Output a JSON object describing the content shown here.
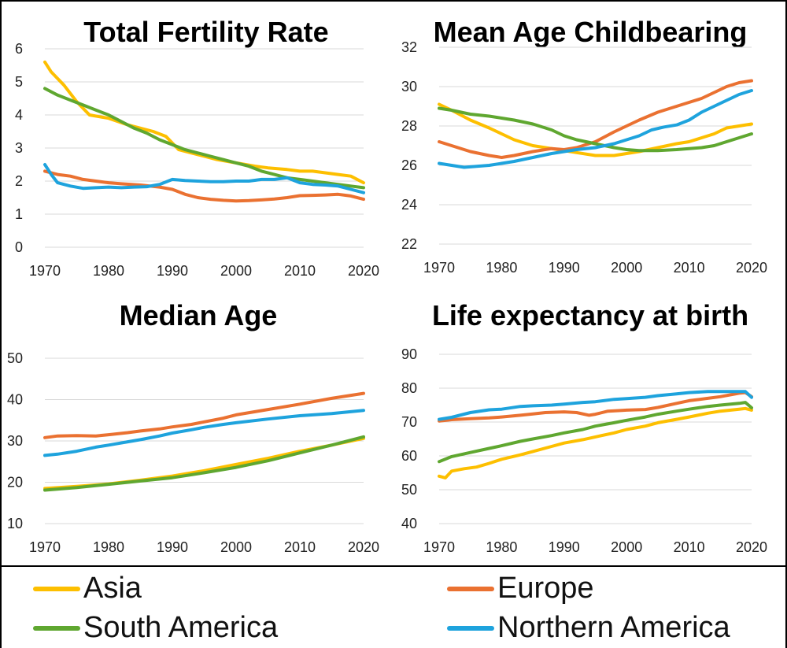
{
  "legend": [
    {
      "name": "Asia",
      "color": "#FDBF00"
    },
    {
      "name": "Europe",
      "color": "#EA7131"
    },
    {
      "name": "South America",
      "color": "#5FA730"
    },
    {
      "name": "Northern America",
      "color": "#1EA3DD"
    }
  ],
  "chart_data": [
    {
      "type": "line",
      "title": "Total Fertility Rate",
      "xlabel": "",
      "ylabel": "",
      "xlim": [
        1970,
        2020
      ],
      "ylim": [
        0,
        6
      ],
      "xticks": [
        1970,
        1980,
        1990,
        2000,
        2010,
        2020
      ],
      "yticks": [
        0,
        1,
        2,
        3,
        4,
        5,
        6
      ],
      "grid": true,
      "series": [
        {
          "name": "Asia",
          "x": [
            1970,
            1971,
            1973,
            1975,
            1977,
            1980,
            1983,
            1985,
            1987,
            1989,
            1991,
            1993,
            1995,
            1997,
            2000,
            2003,
            2005,
            2008,
            2010,
            2012,
            2014,
            2016,
            2018,
            2020
          ],
          "values": [
            5.6,
            5.3,
            4.9,
            4.4,
            4.0,
            3.9,
            3.7,
            3.6,
            3.5,
            3.35,
            2.95,
            2.85,
            2.75,
            2.65,
            2.55,
            2.45,
            2.4,
            2.35,
            2.3,
            2.3,
            2.25,
            2.2,
            2.15,
            1.95
          ]
        },
        {
          "name": "Europe",
          "x": [
            1970,
            1972,
            1974,
            1976,
            1978,
            1980,
            1982,
            1985,
            1988,
            1990,
            1992,
            1994,
            1996,
            1998,
            2000,
            2002,
            2004,
            2006,
            2008,
            2010,
            2012,
            2014,
            2016,
            2018,
            2020
          ],
          "values": [
            2.3,
            2.2,
            2.15,
            2.05,
            2.0,
            1.95,
            1.92,
            1.88,
            1.82,
            1.75,
            1.6,
            1.5,
            1.45,
            1.42,
            1.4,
            1.41,
            1.43,
            1.46,
            1.5,
            1.56,
            1.57,
            1.58,
            1.6,
            1.55,
            1.45
          ]
        },
        {
          "name": "South America",
          "x": [
            1970,
            1972,
            1974,
            1976,
            1978,
            1980,
            1982,
            1984,
            1986,
            1988,
            1990,
            1992,
            1994,
            1996,
            1998,
            2000,
            2002,
            2004,
            2006,
            2008,
            2010,
            2012,
            2014,
            2016,
            2018,
            2020
          ],
          "values": [
            4.8,
            4.6,
            4.45,
            4.3,
            4.15,
            4.0,
            3.8,
            3.6,
            3.45,
            3.25,
            3.1,
            2.95,
            2.85,
            2.75,
            2.65,
            2.55,
            2.45,
            2.3,
            2.2,
            2.1,
            2.05,
            2.0,
            1.95,
            1.9,
            1.85,
            1.8
          ]
        },
        {
          "name": "Northern America",
          "x": [
            1970,
            1971,
            1972,
            1974,
            1976,
            1978,
            1980,
            1982,
            1984,
            1986,
            1988,
            1990,
            1992,
            1994,
            1996,
            1998,
            2000,
            2002,
            2004,
            2006,
            2008,
            2010,
            2012,
            2014,
            2016,
            2018,
            2020
          ],
          "values": [
            2.5,
            2.2,
            1.95,
            1.85,
            1.78,
            1.8,
            1.82,
            1.8,
            1.82,
            1.83,
            1.9,
            2.05,
            2.02,
            2.0,
            1.98,
            1.98,
            2.0,
            2.0,
            2.05,
            2.05,
            2.1,
            1.95,
            1.9,
            1.88,
            1.85,
            1.75,
            1.65
          ]
        }
      ]
    },
    {
      "type": "line",
      "title": "Mean Age Childbearing",
      "xlabel": "",
      "ylabel": "",
      "xlim": [
        1970,
        2020
      ],
      "ylim": [
        22,
        32
      ],
      "xticks": [
        1970,
        1980,
        1990,
        2000,
        2010,
        2020
      ],
      "yticks": [
        22,
        24,
        26,
        28,
        30,
        32
      ],
      "grid": true,
      "series": [
        {
          "name": "Asia",
          "x": [
            1970,
            1972,
            1975,
            1978,
            1980,
            1982,
            1985,
            1988,
            1990,
            1992,
            1995,
            1998,
            2000,
            2002,
            2005,
            2008,
            2010,
            2012,
            2014,
            2016,
            2018,
            2020
          ],
          "values": [
            29.1,
            28.8,
            28.3,
            27.9,
            27.6,
            27.3,
            27.0,
            26.85,
            26.75,
            26.65,
            26.5,
            26.5,
            26.6,
            26.7,
            26.9,
            27.1,
            27.2,
            27.4,
            27.6,
            27.9,
            28.0,
            28.1
          ]
        },
        {
          "name": "Europe",
          "x": [
            1970,
            1972,
            1975,
            1978,
            1980,
            1982,
            1985,
            1988,
            1990,
            1992,
            1995,
            1998,
            2000,
            2002,
            2005,
            2008,
            2010,
            2012,
            2014,
            2016,
            2018,
            2020
          ],
          "values": [
            27.2,
            27.0,
            26.7,
            26.5,
            26.4,
            26.5,
            26.7,
            26.85,
            26.8,
            26.9,
            27.2,
            27.7,
            28.0,
            28.3,
            28.7,
            29.0,
            29.2,
            29.4,
            29.7,
            30.0,
            30.2,
            30.3
          ]
        },
        {
          "name": "South America",
          "x": [
            1970,
            1972,
            1975,
            1978,
            1980,
            1982,
            1985,
            1988,
            1990,
            1992,
            1995,
            1998,
            2000,
            2002,
            2005,
            2008,
            2010,
            2012,
            2014,
            2016,
            2018,
            2020
          ],
          "values": [
            28.9,
            28.8,
            28.6,
            28.5,
            28.4,
            28.3,
            28.1,
            27.8,
            27.5,
            27.3,
            27.1,
            26.9,
            26.8,
            26.75,
            26.75,
            26.8,
            26.85,
            26.9,
            27.0,
            27.2,
            27.4,
            27.6
          ]
        },
        {
          "name": "Northern America",
          "x": [
            1970,
            1972,
            1974,
            1976,
            1978,
            1980,
            1982,
            1985,
            1988,
            1990,
            1992,
            1995,
            1998,
            2000,
            2002,
            2004,
            2006,
            2008,
            2010,
            2012,
            2014,
            2016,
            2018,
            2020
          ],
          "values": [
            26.1,
            26.0,
            25.9,
            25.95,
            26.0,
            26.1,
            26.2,
            26.4,
            26.6,
            26.7,
            26.8,
            26.9,
            27.1,
            27.3,
            27.5,
            27.8,
            27.95,
            28.05,
            28.3,
            28.7,
            29.0,
            29.3,
            29.6,
            29.8
          ]
        }
      ]
    },
    {
      "type": "line",
      "title": "Median Age",
      "xlabel": "",
      "ylabel": "",
      "xlim": [
        1970,
        2020
      ],
      "ylim": [
        10,
        50
      ],
      "xticks": [
        1970,
        1980,
        1990,
        2000,
        2010,
        2020
      ],
      "yticks": [
        10,
        20,
        30,
        40,
        50
      ],
      "grid": true,
      "series": [
        {
          "name": "Asia",
          "x": [
            1970,
            1975,
            1980,
            1985,
            1990,
            1995,
            2000,
            2005,
            2010,
            2015,
            2020
          ],
          "values": [
            18.5,
            19.0,
            19.6,
            20.5,
            21.5,
            22.8,
            24.3,
            25.8,
            27.5,
            29.0,
            30.6
          ]
        },
        {
          "name": "Europe",
          "x": [
            1970,
            1972,
            1975,
            1978,
            1980,
            1983,
            1985,
            1988,
            1990,
            1993,
            1995,
            1998,
            2000,
            2005,
            2010,
            2015,
            2020
          ],
          "values": [
            30.8,
            31.2,
            31.3,
            31.2,
            31.5,
            32.0,
            32.4,
            32.9,
            33.4,
            34.0,
            34.6,
            35.5,
            36.3,
            37.6,
            38.9,
            40.3,
            41.5
          ]
        },
        {
          "name": "South America",
          "x": [
            1970,
            1975,
            1980,
            1985,
            1990,
            1995,
            2000,
            2005,
            2010,
            2015,
            2020
          ],
          "values": [
            18.1,
            18.7,
            19.5,
            20.3,
            21.1,
            22.3,
            23.6,
            25.2,
            27.1,
            29.0,
            31.0
          ]
        },
        {
          "name": "Northern America",
          "x": [
            1970,
            1972,
            1975,
            1978,
            1980,
            1983,
            1985,
            1988,
            1990,
            1993,
            1995,
            1998,
            2000,
            2005,
            2010,
            2015,
            2020
          ],
          "values": [
            26.5,
            26.8,
            27.5,
            28.5,
            29.0,
            29.8,
            30.3,
            31.2,
            31.9,
            32.7,
            33.3,
            34.0,
            34.4,
            35.3,
            36.1,
            36.6,
            37.4
          ]
        }
      ]
    },
    {
      "type": "line",
      "title": "Life expectancy at birth",
      "xlabel": "",
      "ylabel": "",
      "xlim": [
        1970,
        2020
      ],
      "ylim": [
        40,
        90
      ],
      "xticks": [
        1970,
        1980,
        1990,
        2000,
        2010,
        2020
      ],
      "yticks": [
        40,
        50,
        60,
        70,
        80,
        90
      ],
      "grid": true,
      "series": [
        {
          "name": "Asia",
          "x": [
            1970,
            1971,
            1972,
            1974,
            1976,
            1978,
            1980,
            1983,
            1985,
            1988,
            1990,
            1993,
            1995,
            1998,
            2000,
            2003,
            2005,
            2008,
            2010,
            2013,
            2015,
            2018,
            2019,
            2020
          ],
          "values": [
            54.0,
            53.5,
            55.5,
            56.2,
            56.7,
            57.8,
            59.0,
            60.3,
            61.3,
            62.8,
            63.8,
            64.8,
            65.6,
            66.8,
            67.8,
            68.8,
            69.8,
            70.8,
            71.5,
            72.6,
            73.2,
            73.8,
            74.0,
            73.5
          ]
        },
        {
          "name": "Europe",
          "x": [
            1970,
            1972,
            1975,
            1978,
            1980,
            1983,
            1985,
            1987,
            1990,
            1992,
            1994,
            1995,
            1997,
            1999,
            2000,
            2003,
            2005,
            2008,
            2010,
            2013,
            2015,
            2018,
            2019,
            2020
          ],
          "values": [
            70.3,
            70.7,
            71.0,
            71.2,
            71.5,
            72.0,
            72.4,
            72.8,
            73.0,
            72.8,
            72.0,
            72.3,
            73.2,
            73.4,
            73.5,
            73.7,
            74.3,
            75.5,
            76.3,
            77.0,
            77.5,
            78.5,
            78.7,
            77.5
          ]
        },
        {
          "name": "South America",
          "x": [
            1970,
            1972,
            1975,
            1978,
            1980,
            1983,
            1985,
            1988,
            1990,
            1993,
            1995,
            1998,
            2000,
            2003,
            2005,
            2008,
            2010,
            2013,
            2015,
            2018,
            2019,
            2020
          ],
          "values": [
            58.3,
            59.8,
            61.0,
            62.2,
            63.0,
            64.3,
            65.0,
            66.0,
            66.8,
            67.8,
            68.8,
            69.8,
            70.5,
            71.5,
            72.3,
            73.2,
            73.8,
            74.6,
            75.0,
            75.5,
            75.8,
            74.2
          ]
        },
        {
          "name": "Northern America",
          "x": [
            1970,
            1972,
            1975,
            1978,
            1980,
            1983,
            1985,
            1988,
            1990,
            1993,
            1995,
            1998,
            2000,
            2003,
            2005,
            2008,
            2010,
            2013,
            2015,
            2018,
            2019,
            2020
          ],
          "values": [
            70.8,
            71.4,
            72.8,
            73.6,
            73.8,
            74.6,
            74.8,
            75.0,
            75.3,
            75.8,
            76.0,
            76.7,
            76.9,
            77.3,
            77.8,
            78.3,
            78.7,
            79.0,
            79.0,
            79.0,
            79.0,
            77.3
          ]
        }
      ]
    }
  ]
}
